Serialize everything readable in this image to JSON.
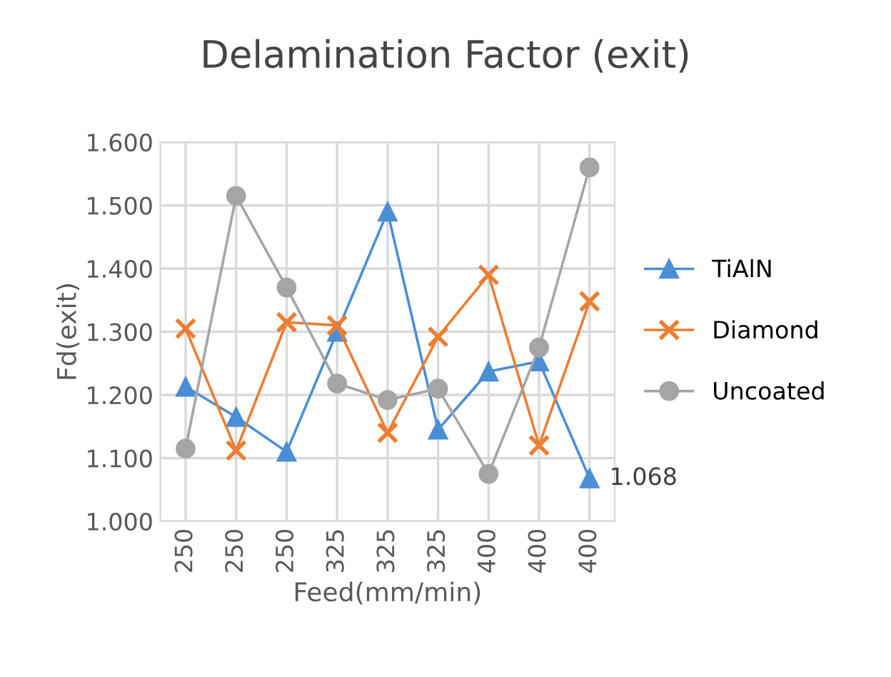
{
  "chart_data": {
    "type": "line",
    "title": "Delamination Factor (exit)",
    "xlabel": "Feed(mm/min)",
    "ylabel": "Fd(exit)",
    "categories": [
      "250",
      "250",
      "250",
      "325",
      "325",
      "325",
      "400",
      "400",
      "400"
    ],
    "series": [
      {
        "name": "TiAlN",
        "color": "#4a8fd6",
        "marker": "triangle",
        "values": [
          1.213,
          1.165,
          1.11,
          1.3,
          1.49,
          1.145,
          1.237,
          1.253,
          1.068
        ],
        "value_labels": [
          null,
          null,
          null,
          null,
          null,
          null,
          null,
          null,
          "1.068"
        ]
      },
      {
        "name": "Diamond",
        "color": "#ed7d31",
        "marker": "cross",
        "values": [
          1.305,
          1.112,
          1.315,
          1.31,
          1.14,
          1.292,
          1.39,
          1.12,
          1.348
        ]
      },
      {
        "name": "Uncoated",
        "color": "#a5a5a5",
        "marker": "circle",
        "values": [
          1.115,
          1.515,
          1.37,
          1.218,
          1.192,
          1.21,
          1.075,
          1.275,
          1.56
        ]
      }
    ],
    "ylim": [
      1.0,
      1.6
    ],
    "yticks": [
      {
        "value": 1.0,
        "label": "1.000"
      },
      {
        "value": 1.1,
        "label": "1.100"
      },
      {
        "value": 1.2,
        "label": "1.200"
      },
      {
        "value": 1.3,
        "label": "1.300"
      },
      {
        "value": 1.4,
        "label": "1.400"
      },
      {
        "value": 1.5,
        "label": "1.500"
      },
      {
        "value": 1.6,
        "label": "1.600"
      }
    ],
    "grid": true,
    "legend": "right"
  }
}
